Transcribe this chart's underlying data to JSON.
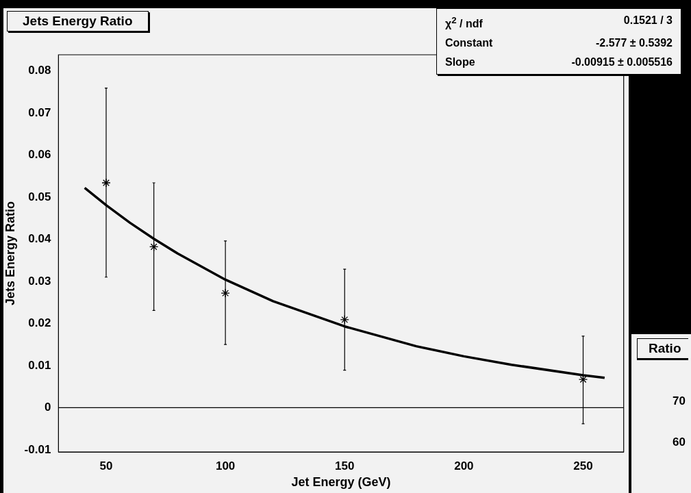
{
  "chart_data": [
    {
      "type": "scatter",
      "title": "Jets Energy Ratio",
      "xlabel": "Jet Energy (GeV)",
      "ylabel": "Jets Energy Ratio",
      "xlim": [
        30,
        267
      ],
      "xticks": [
        50,
        100,
        150,
        200,
        250
      ],
      "ylim": [
        -0.0105,
        0.0838
      ],
      "yticks": [
        -0.01,
        0,
        0.01,
        0.02,
        0.03,
        0.04,
        0.05,
        0.06,
        0.07,
        0.08
      ],
      "ref_lines": [
        {
          "axis": "y",
          "value": 0,
          "color": "#000000"
        }
      ],
      "series": [
        {
          "type": "scatter",
          "color": "#000000",
          "marker": "cross",
          "x": [
            50,
            70,
            100,
            150,
            250
          ],
          "values": [
            0.0534,
            0.0382,
            0.0272,
            0.0209,
            0.0067
          ],
          "errors": [
            [
              0.031,
              0.0759
            ],
            [
              0.0231,
              0.0534
            ],
            [
              0.015,
              0.0396
            ],
            [
              0.0089,
              0.0329
            ],
            [
              -0.0038,
              0.017
            ]
          ]
        },
        {
          "type": "line",
          "color": "#000000",
          "marker": "none",
          "x": [
            41,
            50,
            60,
            70,
            80,
            100,
            120,
            150,
            180,
            200,
            220,
            250,
            259
          ],
          "values": [
            0.0522,
            0.0481,
            0.0439,
            0.0401,
            0.0366,
            0.0304,
            0.0253,
            0.0193,
            0.0146,
            0.0122,
            0.0102,
            0.0077,
            0.0071
          ]
        }
      ],
      "annotations": [
        "χ$^{2}$ / ndf",
        "0.1521 / 3",
        "Constant",
        "-2.577 ± 0.5392",
        "Slope",
        "-0.00915 ± 0.005516"
      ]
    },
    {
      "type": "other",
      "title": "Ratio",
      "annotations": [
        "70",
        "60"
      ]
    }
  ]
}
